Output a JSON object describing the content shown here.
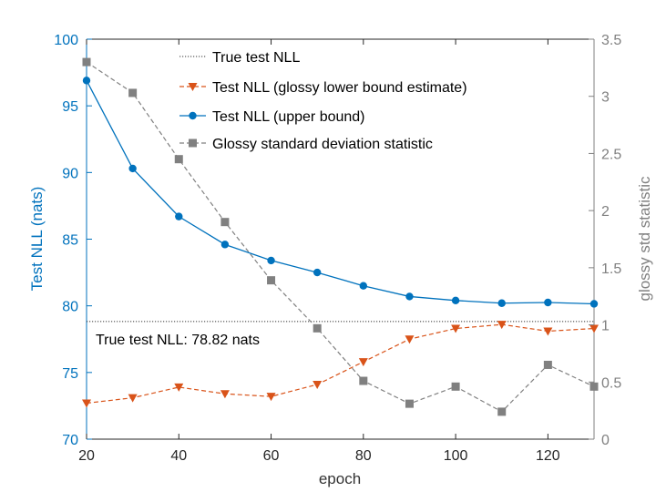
{
  "chart_data": {
    "type": "line",
    "xlabel": "epoch",
    "ylabel_left": "Test NLL (nats)",
    "ylabel_right": "glossy std statistic",
    "xlim": [
      20,
      130
    ],
    "ylim_left": [
      70,
      100
    ],
    "ylim_right": [
      0,
      3.5
    ],
    "x_ticks": [
      20,
      40,
      60,
      80,
      100,
      120
    ],
    "y_ticks_left": [
      70,
      75,
      80,
      85,
      90,
      95,
      100
    ],
    "y_ticks_right": [
      "0",
      "0.5",
      "1",
      "1.5",
      "2",
      "2.5",
      "3",
      "3.5"
    ],
    "grid": false,
    "legend_position": "top-center",
    "colors": {
      "left_axis": "#0072BD",
      "right_axis": "#808080",
      "upper": "#0072BD",
      "lower": "#D95319",
      "std": "#808080",
      "true": "#333333"
    },
    "annotation": "True test NLL: 78.82 nats",
    "series": [
      {
        "name": "True test NLL",
        "axis": "left",
        "style": "dotted",
        "x": [
          20,
          130
        ],
        "values": [
          78.82,
          78.82
        ]
      },
      {
        "name": "Test NLL (glossy lower bound estimate)",
        "axis": "left",
        "style": "dashed",
        "marker": "triangle-down",
        "x": [
          20,
          30,
          40,
          50,
          60,
          70,
          80,
          90,
          100,
          110,
          120,
          130
        ],
        "values": [
          72.7,
          73.1,
          73.9,
          73.4,
          73.2,
          74.1,
          75.8,
          77.5,
          78.3,
          78.6,
          78.1,
          78.3
        ]
      },
      {
        "name": "Test NLL (upper bound)",
        "axis": "left",
        "style": "solid",
        "marker": "circle",
        "x": [
          20,
          30,
          40,
          50,
          60,
          70,
          80,
          90,
          100,
          110,
          120,
          130
        ],
        "values": [
          96.9,
          90.3,
          86.7,
          84.6,
          83.4,
          82.5,
          81.5,
          80.7,
          80.4,
          80.2,
          80.25,
          80.15
        ]
      },
      {
        "name": "Glossy standard deviation statistic",
        "axis": "right",
        "style": "dashed",
        "marker": "square",
        "x": [
          20,
          30,
          40,
          50,
          60,
          70,
          80,
          90,
          100,
          110,
          120,
          130
        ],
        "values": [
          3.3,
          3.03,
          2.45,
          1.9,
          1.39,
          0.97,
          0.51,
          0.31,
          0.46,
          0.24,
          0.65,
          0.46
        ]
      }
    ]
  }
}
